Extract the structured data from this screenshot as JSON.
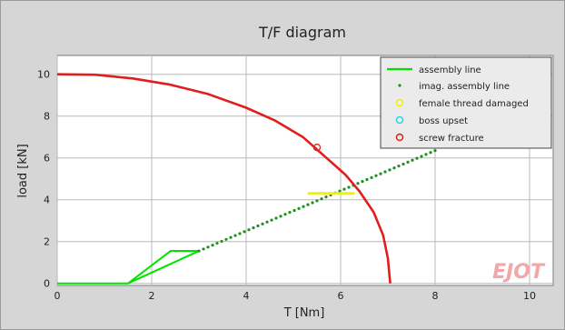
{
  "chart_data": {
    "type": "line",
    "title": "T/F diagram",
    "xlabel": "T [Nm]",
    "ylabel": "load [kN]",
    "xlim": [
      0,
      10.5
    ],
    "ylim": [
      -0.1,
      10.9
    ],
    "xticks": [
      0,
      2,
      4,
      6,
      8,
      10
    ],
    "yticks": [
      0,
      2,
      4,
      6,
      8,
      10
    ],
    "grid": true,
    "legend_position": "top-right",
    "watermark": "EJOT",
    "colors": {
      "assembly": "#00e400",
      "imag_assembly": "#1f8f1f",
      "female_thread": "#f2f200",
      "boss_upset": "#22d6e6",
      "screw_fracture": "#e01e1e",
      "plot_bg": "#ffffff",
      "grid": "#b8b8b8",
      "panel_bg": "#d6d6d6"
    },
    "series": [
      {
        "name": "assembly line",
        "style": "line",
        "points": [
          [
            0,
            0
          ],
          [
            1.5,
            0
          ],
          [
            2.4,
            1.55
          ],
          [
            3.0,
            1.55
          ],
          [
            1.5,
            0
          ]
        ]
      },
      {
        "name": "imag. assembly line",
        "style": "dots",
        "points": [
          [
            3.0,
            1.55
          ],
          [
            8.0,
            6.35
          ]
        ]
      },
      {
        "name": "female thread damaged",
        "style": "line",
        "points": [
          [
            5.3,
            4.3
          ],
          [
            6.3,
            4.3
          ]
        ]
      },
      {
        "name": "boss upset",
        "style": "marker",
        "points": []
      },
      {
        "name": "screw fracture",
        "style": "line",
        "points": [
          [
            0,
            10
          ],
          [
            0.8,
            9.98
          ],
          [
            1.6,
            9.8
          ],
          [
            2.4,
            9.5
          ],
          [
            3.2,
            9.05
          ],
          [
            4.0,
            8.4
          ],
          [
            4.6,
            7.8
          ],
          [
            5.2,
            7.0
          ],
          [
            5.7,
            6.0
          ],
          [
            6.1,
            5.2
          ],
          [
            6.4,
            4.4
          ],
          [
            6.7,
            3.4
          ],
          [
            6.9,
            2.3
          ],
          [
            7.0,
            1.2
          ],
          [
            7.05,
            0
          ]
        ]
      },
      {
        "name": "screw fracture",
        "style": "marker",
        "points": [
          [
            5.5,
            6.5
          ]
        ]
      }
    ]
  }
}
